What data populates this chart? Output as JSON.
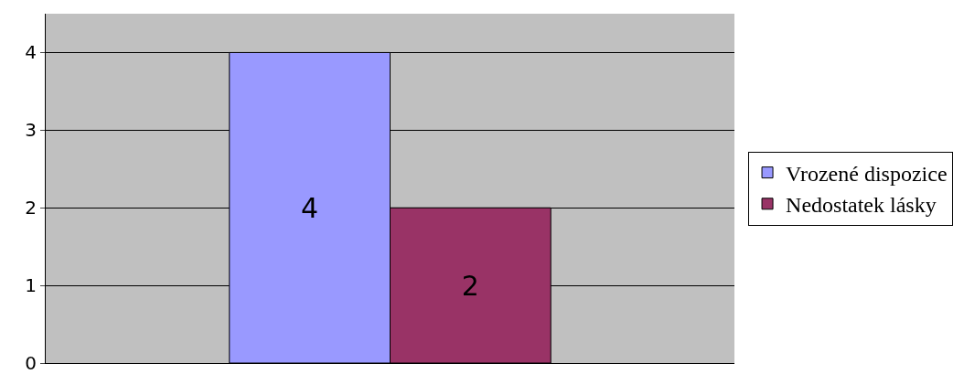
{
  "chart_data": {
    "type": "bar",
    "categories": [
      null
    ],
    "series": [
      {
        "name": "Vrozené dispozice",
        "color": "#9999ff",
        "values": [
          4
        ]
      },
      {
        "name": "Nedostatek lásky",
        "color": "#993366",
        "values": [
          2
        ]
      }
    ],
    "ylim": [
      0,
      4.5
    ],
    "yticks": [
      0,
      1,
      2,
      3,
      4
    ],
    "grid": "y",
    "legend": "right",
    "data_labels": true,
    "tick_labels": "y"
  }
}
